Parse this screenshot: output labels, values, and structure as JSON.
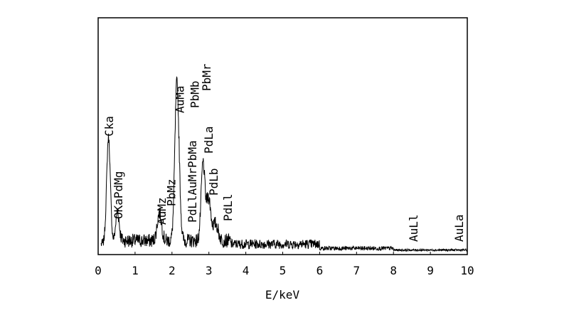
{
  "chart_data": {
    "type": "line",
    "title": "",
    "xlabel": "E/keV",
    "ylabel": "",
    "xlim": [
      0,
      10
    ],
    "ylim": [
      0,
      100
    ],
    "x_ticks": [
      0,
      1,
      2,
      3,
      4,
      5,
      6,
      7,
      8,
      9,
      10
    ],
    "x_tick_labels": [
      "0",
      "1",
      "2",
      "3",
      "4",
      "5",
      "6",
      "7",
      "8",
      "9",
      "10"
    ],
    "grid": false,
    "line_color": "#000000",
    "peaks": [
      {
        "energy": 0.28,
        "height": 100,
        "width": 0.05
      },
      {
        "energy": 0.52,
        "height": 28,
        "width": 0.05
      },
      {
        "energy": 1.66,
        "height": 26,
        "width": 0.06
      },
      {
        "energy": 2.12,
        "height": 120,
        "width": 0.05
      },
      {
        "energy": 2.18,
        "height": 50,
        "width": 0.05
      },
      {
        "energy": 2.84,
        "height": 72,
        "width": 0.05
      },
      {
        "energy": 2.99,
        "height": 40,
        "width": 0.06
      },
      {
        "energy": 3.18,
        "height": 16,
        "width": 0.07
      }
    ],
    "annotations": [
      {
        "text": "Cka",
        "energy": 0.3
      },
      {
        "text": "OKaPdMg",
        "energy": 0.55
      },
      {
        "text": "AuMz",
        "energy": 1.72
      },
      {
        "text": "PbMz",
        "energy": 1.98
      },
      {
        "text": "AuMa",
        "energy": 2.22
      },
      {
        "text": "PdLlAuMrPbMa",
        "energy": 2.55
      },
      {
        "text": "PbMb",
        "energy": 2.62
      },
      {
        "text": "PbMr",
        "energy": 2.94
      },
      {
        "text": "PdLa",
        "energy": 3.0
      },
      {
        "text": "PdLb",
        "energy": 3.13
      },
      {
        "text": "PdLl",
        "energy": 3.52
      },
      {
        "text": "AuLl",
        "energy": 8.55
      },
      {
        "text": "AuLa",
        "energy": 9.78
      }
    ]
  }
}
